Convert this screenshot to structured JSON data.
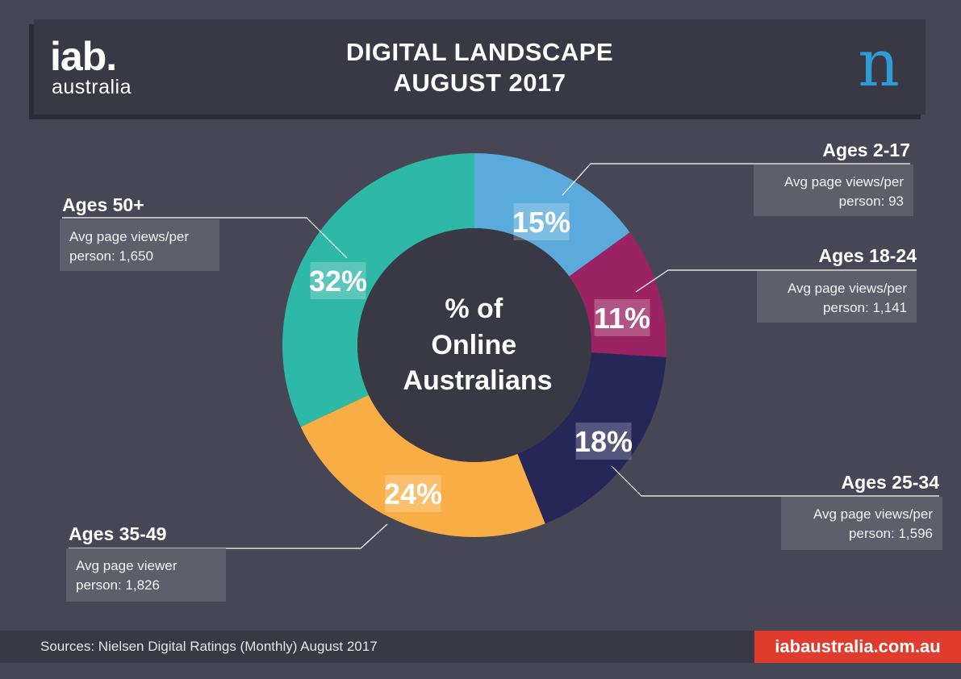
{
  "header": {
    "logo_main": "iab.",
    "logo_sub": "australia",
    "title_line1": "DIGITAL LANDSCAPE",
    "title_line2": "AUGUST 2017",
    "partner_logo_text": "n"
  },
  "chart_data": {
    "type": "pie",
    "center_label": [
      "% of",
      "Online",
      "Australians"
    ],
    "categories": [
      "Ages 2-17",
      "Ages 18-24",
      "Ages 25-34",
      "Ages 35-49",
      "Ages 50+"
    ],
    "values": [
      15,
      11,
      18,
      24,
      32
    ],
    "value_labels": [
      "15%",
      "11%",
      "18%",
      "24%",
      "32%"
    ],
    "annotations": [
      [
        "Avg page views/per",
        "person: 93"
      ],
      [
        "Avg page views/per",
        "person: 1,141"
      ],
      [
        "Avg page views/per",
        "person: 1,596"
      ],
      [
        "Avg page viewer",
        "person: 1,826"
      ],
      [
        "Avg page views/per",
        "person: 1,650"
      ]
    ],
    "colors": [
      "#5aabdc",
      "#9c2363",
      "#272659",
      "#f8ad45",
      "#2db8a7"
    ]
  },
  "footer": {
    "source": "Sources: Nielsen Digital Ratings (Monthly) August 2017",
    "website": "iabaustralia.com.au"
  }
}
